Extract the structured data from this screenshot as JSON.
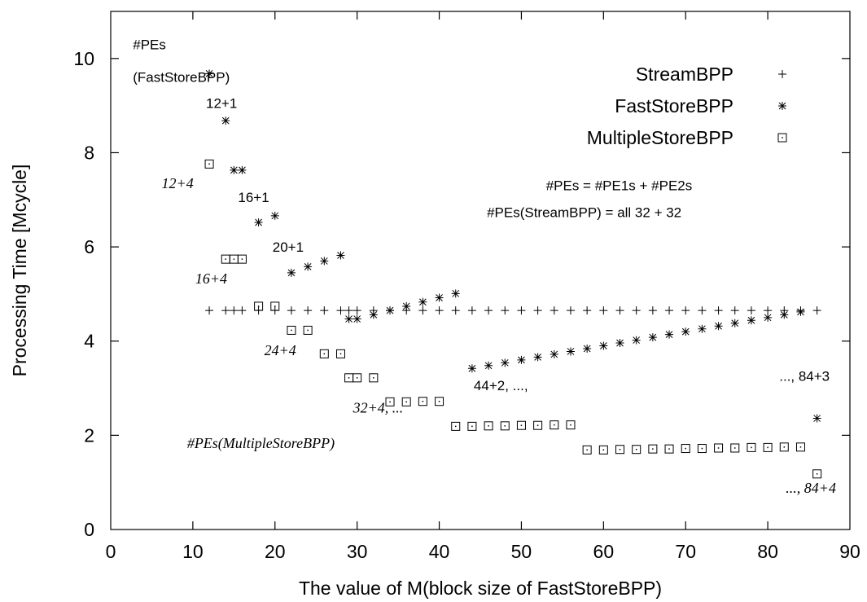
{
  "chart_data": {
    "type": "scatter",
    "xlabel": "The value of M(block size of FastStoreBPP)",
    "ylabel": "Processing Time [Mcycle]",
    "xlim": [
      0,
      90
    ],
    "ylim": [
      0,
      11
    ],
    "xticks": [
      0,
      10,
      20,
      30,
      40,
      50,
      60,
      70,
      80,
      90
    ],
    "yticks": [
      0,
      2,
      4,
      6,
      8,
      10
    ],
    "grid": false,
    "legend_position": "top-right",
    "series": [
      {
        "name": "StreamBPP",
        "marker": "plus",
        "x": [
          12,
          14,
          15,
          16,
          18,
          20,
          22,
          24,
          26,
          28,
          29,
          30,
          32,
          34,
          36,
          38,
          40,
          42,
          44,
          46,
          48,
          50,
          52,
          54,
          56,
          58,
          60,
          62,
          64,
          66,
          68,
          70,
          72,
          74,
          76,
          78,
          80,
          82,
          84,
          86
        ],
        "y": [
          4.65,
          4.65,
          4.65,
          4.65,
          4.65,
          4.65,
          4.65,
          4.65,
          4.65,
          4.65,
          4.65,
          4.65,
          4.65,
          4.65,
          4.65,
          4.65,
          4.65,
          4.65,
          4.65,
          4.65,
          4.65,
          4.65,
          4.65,
          4.65,
          4.65,
          4.65,
          4.65,
          4.65,
          4.65,
          4.65,
          4.65,
          4.65,
          4.65,
          4.65,
          4.65,
          4.65,
          4.65,
          4.65,
          4.65,
          4.65
        ]
      },
      {
        "name": "FastStoreBPP",
        "marker": "star",
        "x": [
          12,
          14,
          15,
          16,
          18,
          20,
          22,
          24,
          26,
          28,
          29,
          30,
          32,
          34,
          36,
          38,
          40,
          42,
          44,
          46,
          48,
          50,
          52,
          54,
          56,
          58,
          60,
          62,
          64,
          66,
          68,
          70,
          72,
          74,
          76,
          78,
          80,
          82,
          84,
          86
        ],
        "y": [
          9.68,
          8.68,
          7.63,
          7.63,
          6.52,
          6.66,
          5.45,
          5.58,
          5.7,
          5.82,
          4.47,
          4.47,
          4.56,
          4.65,
          4.74,
          4.83,
          4.92,
          5.01,
          3.42,
          3.48,
          3.54,
          3.6,
          3.66,
          3.72,
          3.78,
          3.84,
          3.9,
          3.96,
          4.02,
          4.08,
          4.14,
          4.2,
          4.26,
          4.32,
          4.38,
          4.44,
          4.5,
          4.56,
          4.62,
          2.36
        ]
      },
      {
        "name": "MultipleStoreBPP",
        "marker": "square",
        "x": [
          12,
          14,
          15,
          16,
          18,
          20,
          22,
          24,
          26,
          28,
          29,
          30,
          32,
          34,
          36,
          38,
          40,
          42,
          44,
          46,
          48,
          50,
          52,
          54,
          56,
          58,
          60,
          62,
          64,
          66,
          68,
          70,
          72,
          74,
          76,
          78,
          80,
          82,
          84,
          86
        ],
        "y": [
          7.76,
          5.74,
          5.74,
          5.74,
          4.74,
          4.74,
          4.23,
          4.23,
          3.73,
          3.73,
          3.22,
          3.22,
          3.22,
          2.71,
          2.71,
          2.72,
          2.72,
          2.19,
          2.19,
          2.2,
          2.2,
          2.21,
          2.21,
          2.22,
          2.22,
          1.69,
          1.69,
          1.7,
          1.7,
          1.71,
          1.71,
          1.72,
          1.72,
          1.73,
          1.73,
          1.74,
          1.74,
          1.75,
          1.75,
          1.18
        ]
      }
    ],
    "annotations": [
      {
        "text": "#PEs",
        "x": 2.7,
        "y": 10.2,
        "style": "sans"
      },
      {
        "text": "(FastStoreBPP)",
        "x": 2.7,
        "y": 9.5,
        "style": "sans"
      },
      {
        "text": "12+1",
        "x": 11.6,
        "y": 8.95,
        "style": "sans"
      },
      {
        "text": "12+4",
        "x": 6.2,
        "y": 7.25,
        "style": "serif"
      },
      {
        "text": "16+1",
        "x": 15.5,
        "y": 6.95,
        "style": "sans"
      },
      {
        "text": "16+4",
        "x": 10.3,
        "y": 5.22,
        "style": "serif"
      },
      {
        "text": "20+1",
        "x": 19.7,
        "y": 5.9,
        "style": "sans"
      },
      {
        "text": "24+4",
        "x": 18.7,
        "y": 3.7,
        "style": "serif"
      },
      {
        "text": "32+4, ...",
        "x": 29.5,
        "y": 2.48,
        "style": "serif"
      },
      {
        "text": "#PEs(MultipleStoreBPP)",
        "x": 9.3,
        "y": 1.73,
        "style": "serif"
      },
      {
        "text": "44+2, ...,",
        "x": 44.2,
        "y": 2.96,
        "style": "sans"
      },
      {
        "text": "..., 84+3",
        "x": 81.4,
        "y": 3.16,
        "style": "sans"
      },
      {
        "text": "..., 84+4",
        "x": 82.2,
        "y": 0.78,
        "style": "serif"
      },
      {
        "text": "#PEs = #PE1s + #PE2s",
        "x": 53.0,
        "y": 7.2,
        "style": "sans"
      },
      {
        "text": "#PEs(StreamBPP) = all 32 + 32",
        "x": 45.8,
        "y": 6.63,
        "style": "sans"
      }
    ]
  }
}
